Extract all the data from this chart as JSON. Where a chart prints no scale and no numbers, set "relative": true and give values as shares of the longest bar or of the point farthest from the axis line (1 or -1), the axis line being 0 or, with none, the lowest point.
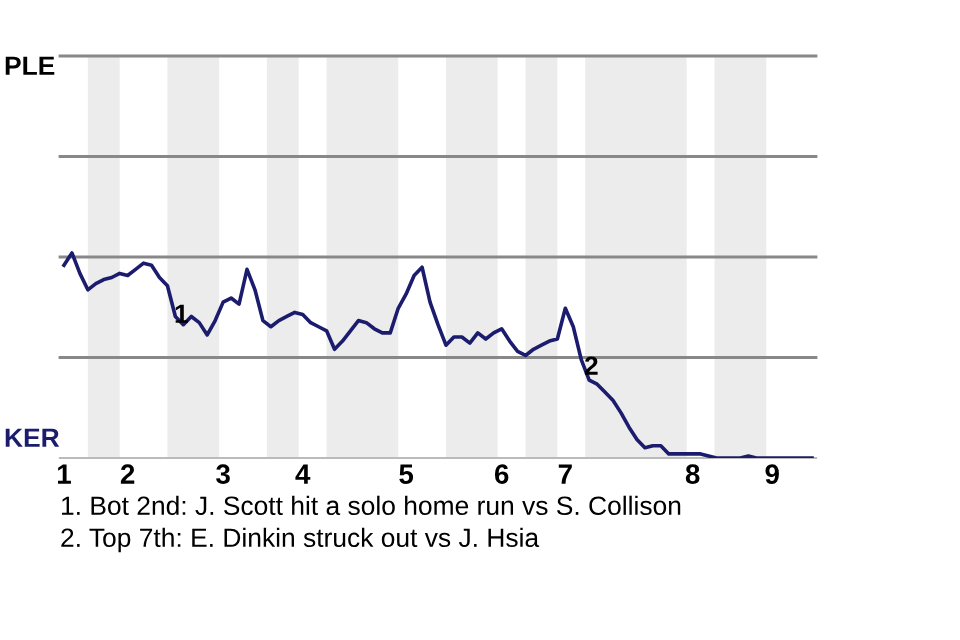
{
  "chart_data": {
    "type": "line",
    "relative": true,
    "categories": [
      "1",
      null,
      null,
      null,
      null,
      null,
      null,
      null,
      "2",
      null,
      null,
      null,
      null,
      null,
      null,
      null,
      null,
      null,
      null,
      null,
      "3",
      null,
      null,
      null,
      null,
      null,
      null,
      null,
      null,
      null,
      "4",
      null,
      null,
      null,
      null,
      null,
      null,
      null,
      null,
      null,
      null,
      null,
      null,
      "5",
      null,
      null,
      null,
      null,
      null,
      null,
      null,
      null,
      null,
      null,
      null,
      "6",
      null,
      null,
      null,
      null,
      null,
      null,
      null,
      "7",
      null,
      null,
      null,
      null,
      null,
      null,
      null,
      null,
      null,
      null,
      null,
      null,
      null,
      null,
      null,
      "8",
      null,
      null,
      null,
      null,
      null,
      null,
      null,
      null,
      null,
      "9",
      null,
      null,
      null,
      null,
      null
    ],
    "line_style": "solid",
    "marker": "none",
    "ref_lines": [
      {
        "axis": "y",
        "value": 0.49,
        "color": "#888888"
      },
      {
        "axis": "y",
        "value": 0.98,
        "color": "#888888"
      },
      {
        "axis": "y",
        "value": 1.47,
        "color": "#888888"
      },
      {
        "axis": "y",
        "value": 1.96,
        "color": "#888888"
      }
    ],
    "series": [
      {
        "color": "#1c1c6e",
        "values": [
          0.94,
          1,
          0.9,
          0.82,
          0.85,
          0.87,
          0.88,
          0.9,
          0.89,
          0.92,
          0.95,
          0.94,
          0.88,
          0.84,
          0.69,
          0.65,
          0.69,
          0.66,
          0.6,
          0.67,
          0.76,
          0.78,
          0.75,
          0.92,
          0.82,
          0.67,
          0.64,
          0.67,
          0.69,
          0.71,
          0.7,
          0.66,
          0.64,
          0.62,
          0.53,
          0.57,
          0.62,
          0.67,
          0.66,
          0.63,
          0.61,
          0.61,
          0.73,
          0.8,
          0.89,
          0.93,
          0.76,
          0.65,
          0.55,
          0.59,
          0.59,
          0.56,
          0.61,
          0.58,
          0.61,
          0.63,
          0.57,
          0.52,
          0.5,
          0.53,
          0.55,
          0.57,
          0.58,
          0.73,
          0.64,
          0.48,
          0.38,
          0.36,
          0.32,
          0.28,
          0.22,
          0.15,
          0.09,
          0.05,
          0.06,
          0.06,
          0.02,
          0.02,
          0.02,
          0.02,
          0.02,
          0.01,
          0,
          0,
          0,
          0,
          0.01,
          0,
          0,
          0,
          0,
          0,
          0,
          0,
          0
        ]
      }
    ],
    "annotations": [
      "PLE",
      "KER",
      "1",
      "2",
      "1. Bot 2nd: J. Scott hit a solo home run vs S. Collison",
      "2. Top 7th: E. Dinkin struck out vs J. Hsia"
    ]
  }
}
